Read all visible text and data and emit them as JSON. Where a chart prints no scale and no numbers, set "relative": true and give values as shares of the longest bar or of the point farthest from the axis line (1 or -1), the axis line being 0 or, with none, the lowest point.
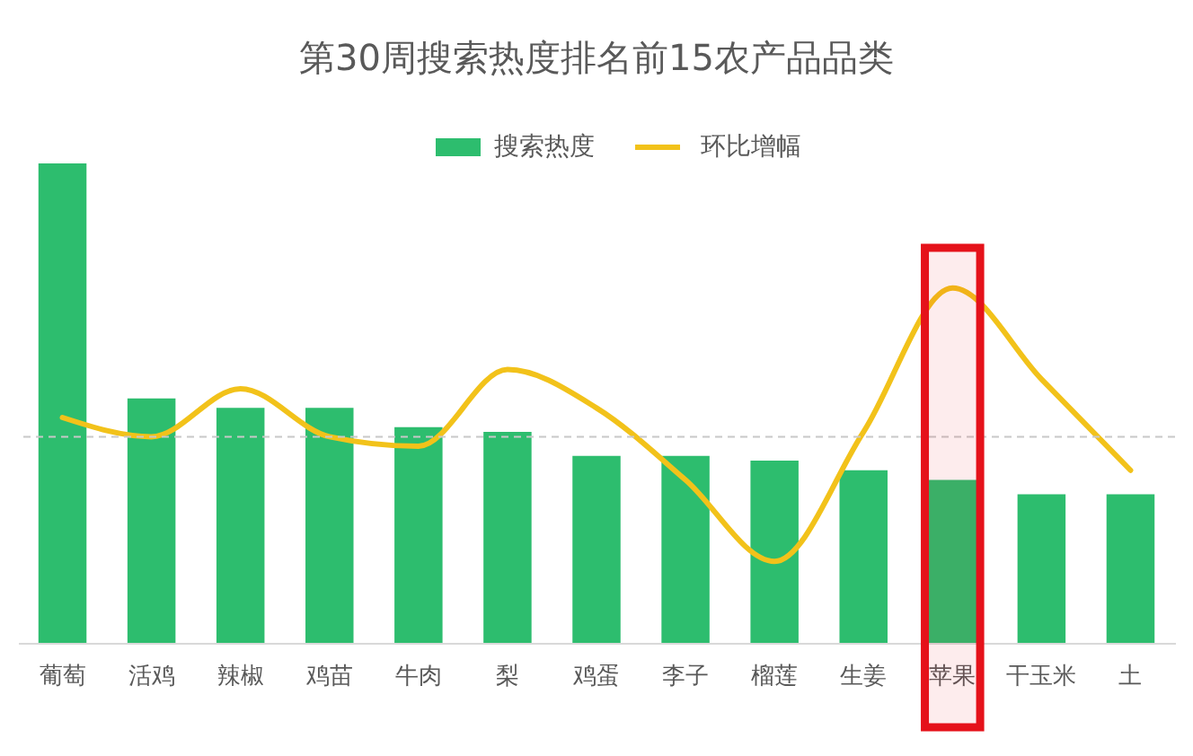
{
  "chart_data": {
    "type": "bar",
    "title": "第30周搜索热度排名前15农产品品类",
    "categories": [
      "葡萄",
      "活鸡",
      "辣椒",
      "鸡苗",
      "牛肉",
      "梨",
      "鸡蛋",
      "李子",
      "榴莲",
      "生姜",
      "苹果",
      "干玉米",
      "土"
    ],
    "relative": true,
    "series": [
      {
        "name": "搜索热度",
        "color": "#2dbd6e",
        "values": [
          1,
          0.51,
          0.49,
          0.49,
          0.45,
          0.44,
          0.39,
          0.39,
          0.38,
          0.36,
          0.34,
          0.31,
          0.31
        ]
      },
      {
        "name": "环比增幅",
        "type": "line",
        "color": "#f2c21a",
        "values": [
          0.47,
          0.43,
          0.53,
          0.43,
          0.41,
          0.57,
          0.49,
          0.34,
          0.17,
          0.44,
          0.74,
          0.55,
          0.36
        ]
      }
    ],
    "legend": "top",
    "ref_lines": [
      {
        "axis": "y",
        "value": 0.43,
        "color": "#c8c8c8",
        "line_style": "dashed"
      }
    ],
    "bands": [
      {
        "axis": "x",
        "from": "苹果",
        "to": "苹果",
        "color": "#e5121a"
      }
    ]
  }
}
